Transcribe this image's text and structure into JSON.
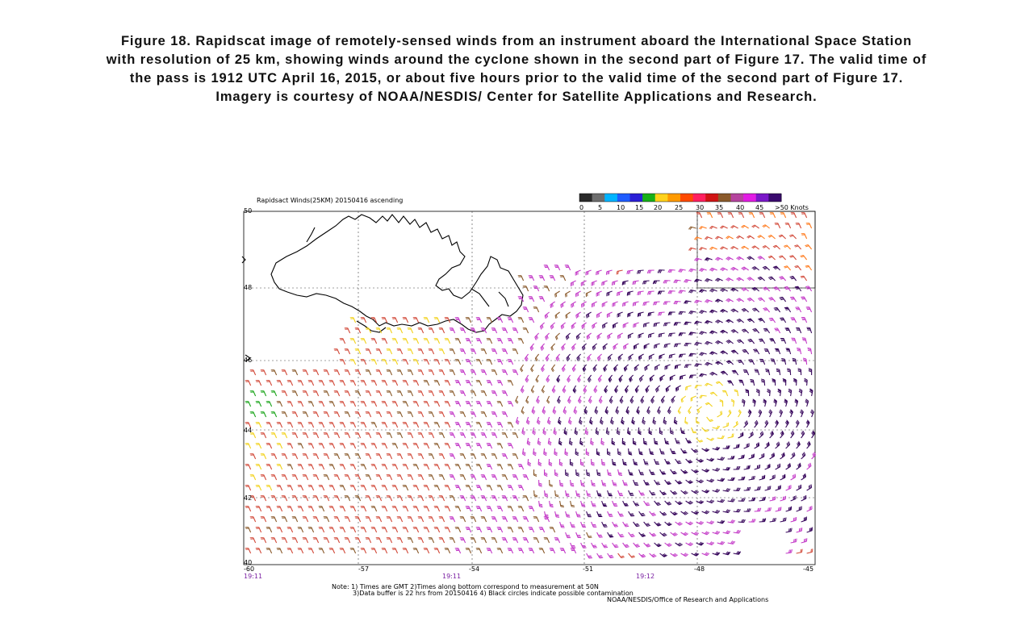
{
  "caption": {
    "lines": [
      "Figure 18.  Rapidscat image of remotely-sensed winds from an instrument aboard the International Space Station",
      "with resolution of 25 km, showing winds around the cyclone shown in the second part of Figure 17.  The valid time of",
      "the pass is 1912 UTC April 16, 2015, or about five hours prior to the valid time of the second part of Figure 17.",
      "Imagery is courtesy of NOAA/NESDIS/ Center for Satellite Applications and Research."
    ]
  },
  "map": {
    "title": "Rapidsact Winds(25KM) 20150416 ascending",
    "lat_labels": [
      "50",
      "48",
      "46",
      "44",
      "42",
      "40"
    ],
    "lon_labels": [
      "-60",
      "-57",
      "-54",
      "-51",
      "-48",
      "-45"
    ],
    "time_labels": [
      "19:11",
      "19:11",
      "19:12"
    ],
    "colorbar": {
      "ticks": [
        "0",
        "5",
        "10",
        "15",
        "20",
        "25",
        "30",
        "35",
        "40",
        "45",
        ">50 Knots"
      ],
      "colors": [
        "#2a2a2a",
        "#6e6e6e",
        "#00b4ff",
        "#1f5cff",
        "#2a1fd6",
        "#18b018",
        "#ffd21c",
        "#ff9a00",
        "#ff4a00",
        "#ff2060",
        "#d01414",
        "#8a5a2b",
        "#b5449e",
        "#e21ce4",
        "#7a18c8",
        "#3a0a6e"
      ]
    },
    "notes": {
      "line1": "Note:  1) Times are GMT 2)Times along bottom correspond to measurement at 50N",
      "line2": "3)Data buffer is 22 hrs from 20150416 4) Black circles indicate possible contamination",
      "credit": "NOAA/NESDIS/Office of Research and Applications"
    },
    "cyclone_center": {
      "lon": -47.8,
      "lat": 43.4
    },
    "legend_colors": {
      "calm": "#1ca51c",
      "light": "#f2d21c",
      "moderate": "#d24a3a",
      "strong": "#8a5a2b",
      "very_strong": "#c43cc8",
      "extreme": "#3a0a5e"
    }
  }
}
